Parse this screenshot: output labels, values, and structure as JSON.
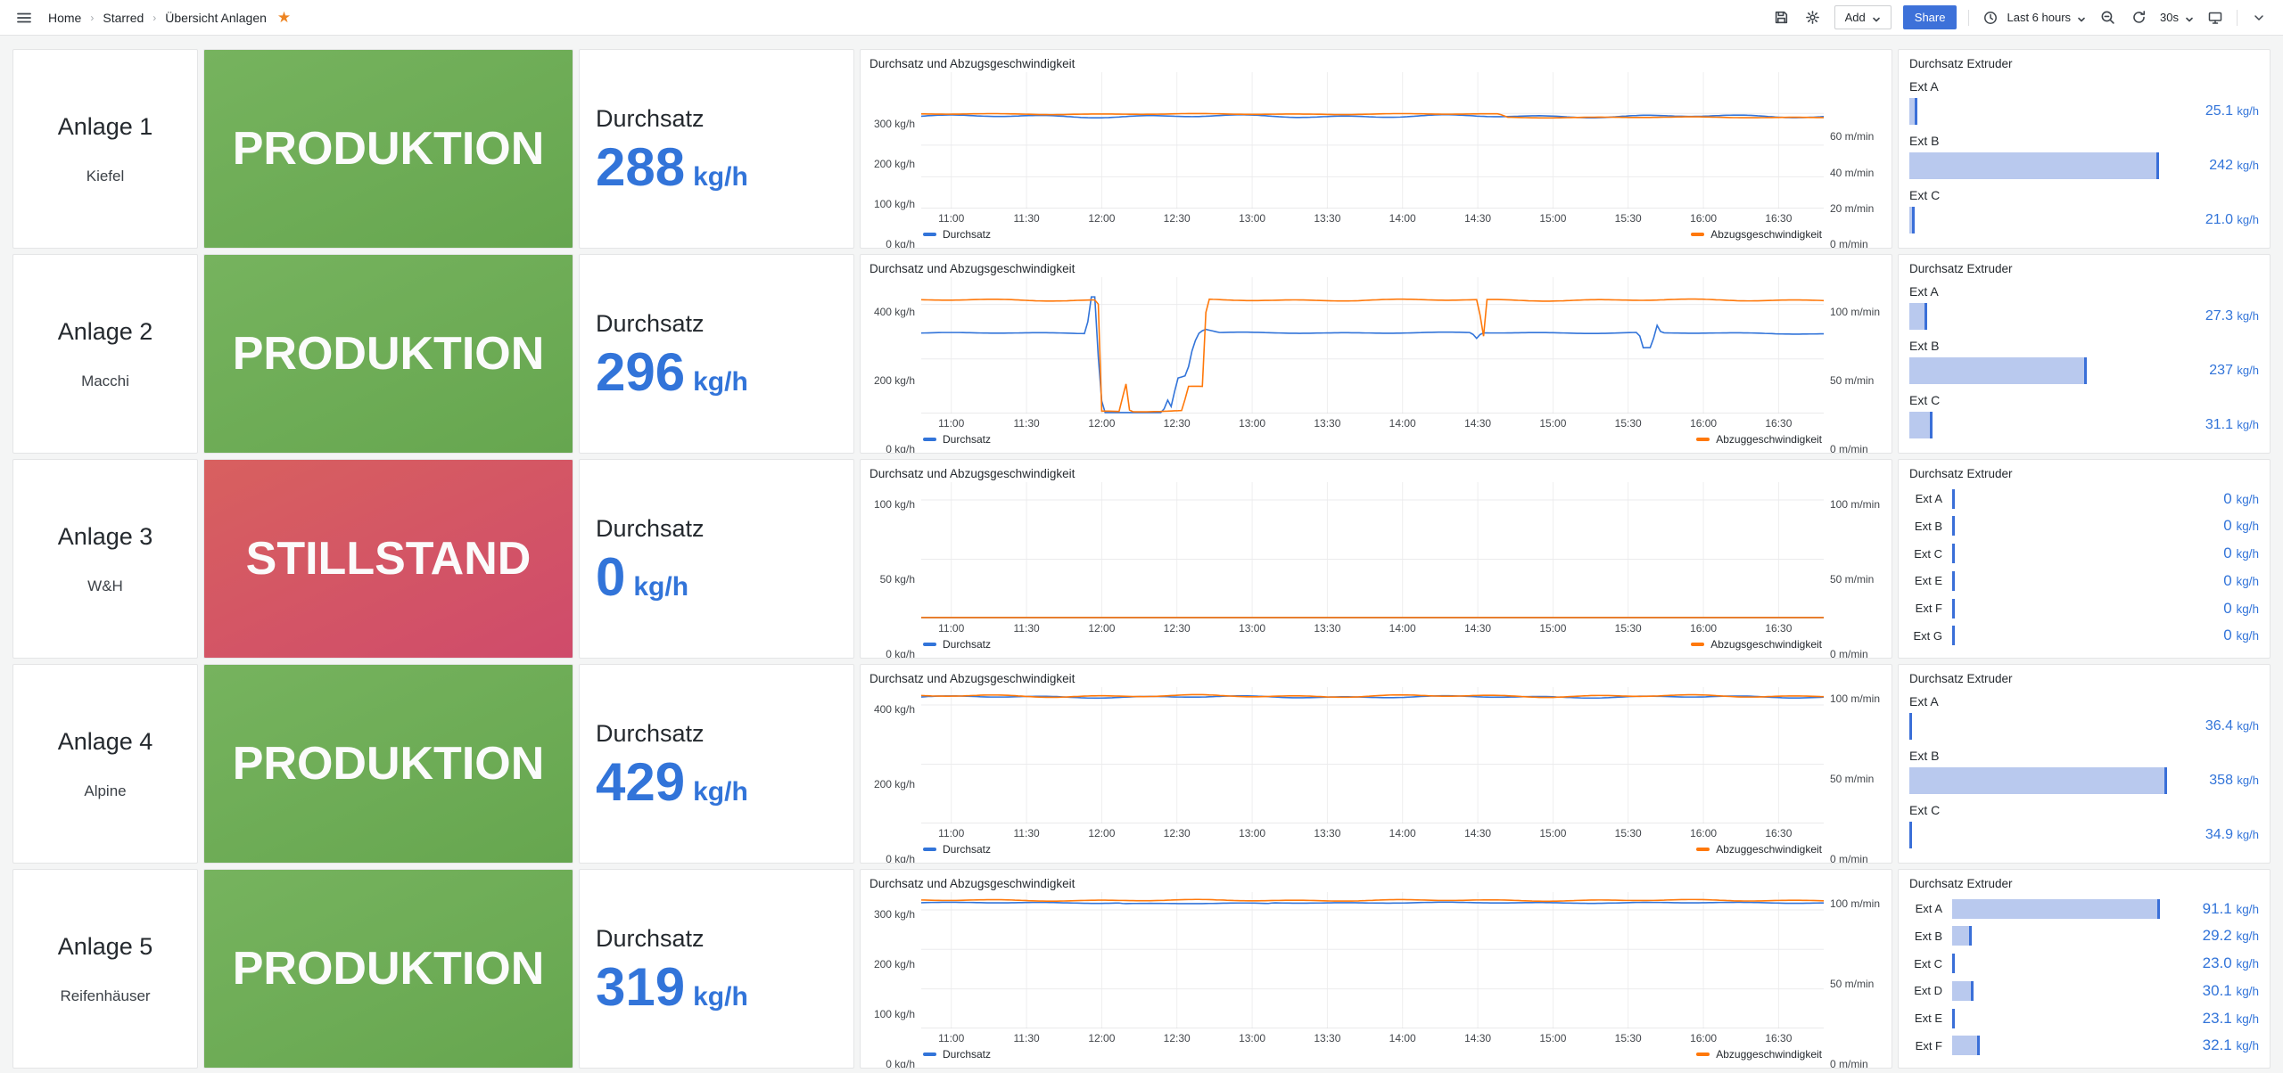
{
  "toolbar": {
    "breadcrumb": [
      {
        "label": "Home"
      },
      {
        "label": "Starred"
      },
      {
        "label": "Übersicht Anlagen"
      }
    ],
    "add_label": "Add",
    "share_label": "Share",
    "time_range": "Last 6 hours",
    "refresh_interval": "30s",
    "icons": [
      "menu-icon",
      "star-icon",
      "save-icon",
      "settings-gear-icon",
      "clock-icon",
      "zoom-out-icon",
      "refresh-icon",
      "tv-kiosk-icon",
      "chevron-down-icon"
    ],
    "accent_blue": "#3d71d9",
    "star_color": "#ed8422"
  },
  "time_axis": {
    "ticks": [
      {
        "t": 0.0333,
        "label": "11:00"
      },
      {
        "t": 0.1167,
        "label": "11:30"
      },
      {
        "t": 0.2,
        "label": "12:00"
      },
      {
        "t": 0.2833,
        "label": "12:30"
      },
      {
        "t": 0.3667,
        "label": "13:00"
      },
      {
        "t": 0.45,
        "label": "13:30"
      },
      {
        "t": 0.5333,
        "label": "14:00"
      },
      {
        "t": 0.6167,
        "label": "14:30"
      },
      {
        "t": 0.7,
        "label": "15:00"
      },
      {
        "t": 0.7833,
        "label": "15:30"
      },
      {
        "t": 0.8667,
        "label": "16:00"
      },
      {
        "t": 0.95,
        "label": "16:30"
      }
    ]
  },
  "colors": {
    "blue": "#3274d9",
    "orange": "#ff780a",
    "bar_fill": "#b9c9ee",
    "bar_edge": "#3a6fd8"
  },
  "rows": [
    {
      "name": "Anlage 1",
      "sub": "Kiefel",
      "status": {
        "label": "PRODUKTION",
        "state": "green"
      },
      "stat": {
        "label": "Durchsatz",
        "value": "288",
        "unit": "kg/h"
      },
      "chart": {
        "type": "line",
        "title": "Durchsatz und Abzugsgeschwindigkeit",
        "legend_left": "Durchsatz",
        "legend_right": "Abzugsgeschwindigkeit",
        "left_ticks": [
          {
            "value": 300,
            "label": "300 kg/h"
          },
          {
            "value": 200,
            "label": "200 kg/h"
          },
          {
            "value": 100,
            "label": "100 kg/h"
          },
          {
            "value": 0,
            "label": "0 kg/h"
          }
        ],
        "left_max": 430,
        "right_ticks": [
          {
            "value": 60,
            "label": "60 m/min"
          },
          {
            "value": 40,
            "label": "40 m/min"
          },
          {
            "value": 20,
            "label": "20 m/min"
          },
          {
            "value": 0,
            "label": "0 m/min"
          }
        ],
        "right_max": 96,
        "series": [
          {
            "name": "Durchsatz",
            "axis": "left",
            "color": "#3274d9",
            "noise": 5,
            "points": [
              [
                0,
                291
              ],
              [
                1,
                291
              ]
            ]
          },
          {
            "name": "Abzugsgeschwindigkeit",
            "axis": "right",
            "color": "#ff780a",
            "noise": 0.4,
            "points": [
              [
                0,
                66.5
              ],
              [
                0.64,
                66.5
              ],
              [
                0.65,
                64.2
              ],
              [
                1,
                64.2
              ]
            ]
          }
        ]
      },
      "gauge": {
        "title": "Durchsatz Extruder",
        "layout": "stacked",
        "items": [
          {
            "label": "Ext A",
            "value": "25.1",
            "unit": "kg/h",
            "width_pct": 3
          },
          {
            "label": "Ext B",
            "value": "242",
            "unit": "kg/h",
            "width_pct": 96
          },
          {
            "label": "Ext C",
            "value": "21.0",
            "unit": "kg/h",
            "width_pct": 2
          }
        ]
      }
    },
    {
      "name": "Anlage 2",
      "sub": "Macchi",
      "status": {
        "label": "PRODUKTION",
        "state": "green"
      },
      "stat": {
        "label": "Durchsatz",
        "value": "296",
        "unit": "kg/h"
      },
      "chart": {
        "type": "line",
        "title": "Durchsatz und Abzugsgeschwindigkeit",
        "legend_left": "Durchsatz",
        "legend_right": "Abzuggeschwindigkeit",
        "left_ticks": [
          {
            "value": 400,
            "label": "400 kg/h"
          },
          {
            "value": 200,
            "label": "200 kg/h"
          },
          {
            "value": 0,
            "label": "0 kg/h"
          }
        ],
        "left_max": 500,
        "right_ticks": [
          {
            "value": 100,
            "label": "100 m/min"
          },
          {
            "value": 50,
            "label": "50 m/min"
          },
          {
            "value": 0,
            "label": "0 m/min"
          }
        ],
        "right_max": 125,
        "series": [
          {
            "name": "Durchsatz",
            "axis": "left",
            "color": "#3274d9",
            "noise": 2.5,
            "points": [
              [
                0,
                295
              ],
              [
                0.183,
                295
              ],
              [
                0.188,
                430
              ],
              [
                0.193,
                430
              ],
              [
                0.198,
                80
              ],
              [
                0.203,
                0
              ],
              [
                0.268,
                0
              ],
              [
                0.272,
                55
              ],
              [
                0.277,
                25
              ],
              [
                0.284,
                130
              ],
              [
                0.294,
                140
              ],
              [
                0.3,
                230
              ],
              [
                0.306,
                290
              ],
              [
                0.314,
                310
              ],
              [
                0.33,
                296
              ],
              [
                0.61,
                296
              ],
              [
                0.615,
                274
              ],
              [
                0.621,
                296
              ],
              [
                0.795,
                296
              ],
              [
                0.8,
                240
              ],
              [
                0.81,
                240
              ],
              [
                0.814,
                330
              ],
              [
                0.82,
                295
              ],
              [
                1,
                293
              ]
            ]
          },
          {
            "name": "Abzuggeschwindigkeit",
            "axis": "right",
            "color": "#ff780a",
            "noise": 1,
            "points": [
              [
                0,
                104
              ],
              [
                0.196,
                104
              ],
              [
                0.2,
                2
              ],
              [
                0.221,
                2
              ],
              [
                0.226,
                33
              ],
              [
                0.231,
                2
              ],
              [
                0.29,
                2
              ],
              [
                0.295,
                24
              ],
              [
                0.312,
                24
              ],
              [
                0.316,
                104
              ],
              [
                0.618,
                104
              ],
              [
                0.622,
                58
              ],
              [
                0.626,
                104
              ],
              [
                1,
                104
              ]
            ]
          }
        ]
      },
      "gauge": {
        "title": "Durchsatz Extruder",
        "layout": "stacked",
        "items": [
          {
            "label": "Ext A",
            "value": "27.3",
            "unit": "kg/h",
            "width_pct": 7
          },
          {
            "label": "Ext B",
            "value": "237",
            "unit": "kg/h",
            "width_pct": 68
          },
          {
            "label": "Ext C",
            "value": "31.1",
            "unit": "kg/h",
            "width_pct": 9
          }
        ]
      }
    },
    {
      "name": "Anlage 3",
      "sub": "W&H",
      "status": {
        "label": "STILLSTAND",
        "state": "red"
      },
      "stat": {
        "label": "Durchsatz",
        "value": "0",
        "unit": "kg/h"
      },
      "chart": {
        "type": "line",
        "title": "Durchsatz und Abzugsgeschwindigkeit",
        "legend_left": "Durchsatz",
        "legend_right": "Abzugsgeschwindigkeit",
        "left_ticks": [
          {
            "value": 100,
            "label": "100 kg/h"
          },
          {
            "value": 50,
            "label": "50 kg/h"
          },
          {
            "value": 0,
            "label": "0 kg/h"
          }
        ],
        "left_max": 115,
        "right_ticks": [
          {
            "value": 100,
            "label": "100 m/min"
          },
          {
            "value": 50,
            "label": "50 m/min"
          },
          {
            "value": 0,
            "label": "0 m/min"
          }
        ],
        "right_max": 115,
        "series": [
          {
            "name": "Durchsatz",
            "axis": "left",
            "color": "#3274d9",
            "noise": 0,
            "points": [
              [
                0,
                0
              ],
              [
                1,
                0
              ]
            ]
          },
          {
            "name": "Abzugsgeschwindigkeit",
            "axis": "right",
            "color": "#ff780a",
            "noise": 0,
            "points": [
              [
                0,
                0
              ],
              [
                1,
                0
              ]
            ]
          }
        ]
      },
      "gauge": {
        "title": "Durchsatz Extruder",
        "layout": "compact",
        "items": [
          {
            "label": "Ext A",
            "value": "0",
            "unit": "kg/h",
            "width_pct": 0
          },
          {
            "label": "Ext B",
            "value": "0",
            "unit": "kg/h",
            "width_pct": 0
          },
          {
            "label": "Ext C",
            "value": "0",
            "unit": "kg/h",
            "width_pct": 0
          },
          {
            "label": "Ext E",
            "value": "0",
            "unit": "kg/h",
            "width_pct": 0
          },
          {
            "label": "Ext F",
            "value": "0",
            "unit": "kg/h",
            "width_pct": 0
          },
          {
            "label": "Ext G",
            "value": "0",
            "unit": "kg/h",
            "width_pct": 0
          }
        ]
      }
    },
    {
      "name": "Anlage 4",
      "sub": "Alpine",
      "status": {
        "label": "PRODUKTION",
        "state": "green"
      },
      "stat": {
        "label": "Durchsatz",
        "value": "429",
        "unit": "kg/h"
      },
      "chart": {
        "type": "line",
        "title": "Durchsatz und Abzugsgeschwindigkeit",
        "legend_left": "Durchsatz",
        "legend_right": "Abzuggeschwindigkeit",
        "left_ticks": [
          {
            "value": 400,
            "label": "400 kg/h"
          },
          {
            "value": 200,
            "label": "200 kg/h"
          },
          {
            "value": 0,
            "label": "0 kg/h"
          }
        ],
        "left_max": 460,
        "right_ticks": [
          {
            "value": 100,
            "label": "100 m/min"
          },
          {
            "value": 50,
            "label": "50 m/min"
          },
          {
            "value": 0,
            "label": "0 m/min"
          }
        ],
        "right_max": 107,
        "series": [
          {
            "name": "Durchsatz",
            "axis": "left",
            "color": "#3274d9",
            "noise": 4,
            "points": [
              [
                0,
                427
              ],
              [
                1,
                427
              ]
            ]
          },
          {
            "name": "Abzuggeschwindigkeit",
            "axis": "right",
            "color": "#ff780a",
            "noise": 1.1,
            "points": [
              [
                0,
                100
              ],
              [
                1,
                100
              ]
            ]
          }
        ]
      },
      "gauge": {
        "title": "Durchsatz Extruder",
        "layout": "stacked",
        "items": [
          {
            "label": "Ext A",
            "value": "36.4",
            "unit": "kg/h",
            "width_pct": 1
          },
          {
            "label": "Ext B",
            "value": "358",
            "unit": "kg/h",
            "width_pct": 99
          },
          {
            "label": "Ext C",
            "value": "34.9",
            "unit": "kg/h",
            "width_pct": 1
          }
        ]
      }
    },
    {
      "name": "Anlage 5",
      "sub": "Reifenhäuser",
      "status": {
        "label": "PRODUKTION",
        "state": "green"
      },
      "stat": {
        "label": "Durchsatz",
        "value": "319",
        "unit": "kg/h"
      },
      "chart": {
        "type": "line",
        "title": "Durchsatz und Abzugsgeschwindigkeit",
        "legend_left": "Durchsatz",
        "legend_right": "Abzuggeschwindigkeit",
        "left_ticks": [
          {
            "value": 300,
            "label": "300 kg/h"
          },
          {
            "value": 200,
            "label": "200 kg/h"
          },
          {
            "value": 100,
            "label": "100 kg/h"
          },
          {
            "value": 0,
            "label": "0 kg/h"
          }
        ],
        "left_max": 345,
        "right_ticks": [
          {
            "value": 100,
            "label": "100 m/min"
          },
          {
            "value": 50,
            "label": "50 m/min"
          },
          {
            "value": 0,
            "label": "0 m/min"
          }
        ],
        "right_max": 107,
        "series": [
          {
            "name": "Durchsatz",
            "axis": "left",
            "color": "#3274d9",
            "noise": 1.5,
            "points": [
              [
                0,
                318
              ],
              [
                0.22,
                318
              ],
              [
                0.225,
                316
              ],
              [
                0.385,
                316
              ],
              [
                0.39,
                318
              ],
              [
                1,
                318
              ]
            ]
          },
          {
            "name": "Abzuggeschwindigkeit",
            "axis": "right",
            "color": "#ff780a",
            "noise": 0.7,
            "points": [
              [
                0,
                100.5
              ],
              [
                1,
                100.5
              ]
            ]
          }
        ]
      },
      "gauge": {
        "title": "Durchsatz Extruder",
        "layout": "compact",
        "items": [
          {
            "label": "Ext A",
            "value": "91.1",
            "unit": "kg/h",
            "width_pct": 97
          },
          {
            "label": "Ext B",
            "value": "29.2",
            "unit": "kg/h",
            "width_pct": 9
          },
          {
            "label": "Ext C",
            "value": "23.0",
            "unit": "kg/h",
            "width_pct": 1
          },
          {
            "label": "Ext D",
            "value": "30.1",
            "unit": "kg/h",
            "width_pct": 10
          },
          {
            "label": "Ext E",
            "value": "23.1",
            "unit": "kg/h",
            "width_pct": 1
          },
          {
            "label": "Ext F",
            "value": "32.1",
            "unit": "kg/h",
            "width_pct": 13
          }
        ]
      }
    }
  ]
}
